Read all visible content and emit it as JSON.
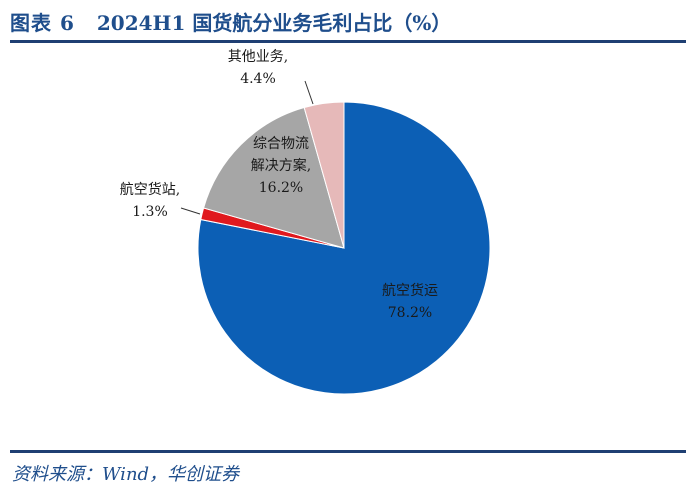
{
  "header": {
    "figure_label": "图表 6",
    "title": "2024H1 国货航分业务毛利占比（%）"
  },
  "footer": {
    "source": "资料来源：Wind，华创证券"
  },
  "chart_data": {
    "type": "pie",
    "title": "2024H1 国货航分业务毛利占比（%）",
    "start_angle_deg": 0,
    "direction": "clockwise",
    "slices": [
      {
        "name": "航空货运",
        "value": 78.2,
        "color": "#0c5fb5",
        "label_lines": [
          "航空货运",
          "78.2%"
        ]
      },
      {
        "name": "航空货站",
        "value": 1.3,
        "color": "#e0191e",
        "label_lines": [
          "航空货站,",
          "1.3%"
        ]
      },
      {
        "name": "综合物流解决方案",
        "value": 16.2,
        "color": "#a6a6a6",
        "label_lines": [
          "综合物流",
          "解决方案,",
          "16.2%"
        ]
      },
      {
        "name": "其他业务",
        "value": 4.4,
        "color": "#e6b9b9",
        "label_lines": [
          "其他业务,",
          "4.4%"
        ]
      }
    ]
  }
}
